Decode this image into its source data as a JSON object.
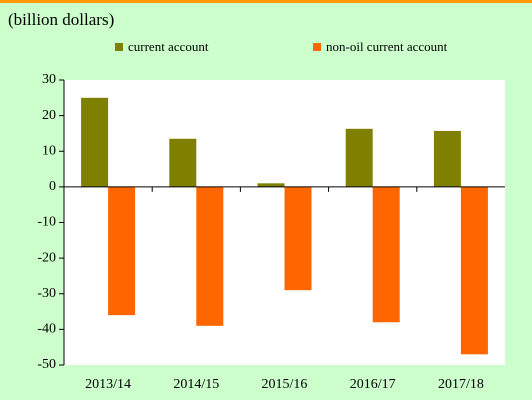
{
  "chart_data": {
    "type": "bar",
    "title": "(billion dollars)",
    "categories": [
      "2013/14",
      "2014/15",
      "2015/16",
      "2016/17",
      "2017/18"
    ],
    "series": [
      {
        "name": "current account",
        "color": "#808000",
        "values": [
          25,
          13.5,
          1,
          16.3,
          15.7
        ]
      },
      {
        "name": "non-oil current account",
        "color": "#ff6600",
        "values": [
          -36,
          -39,
          -29,
          -38,
          -47
        ]
      }
    ],
    "ylim": [
      -50,
      30
    ],
    "yticks": [
      -50,
      -40,
      -30,
      -20,
      -10,
      0,
      10,
      20,
      30
    ],
    "grid": false
  }
}
